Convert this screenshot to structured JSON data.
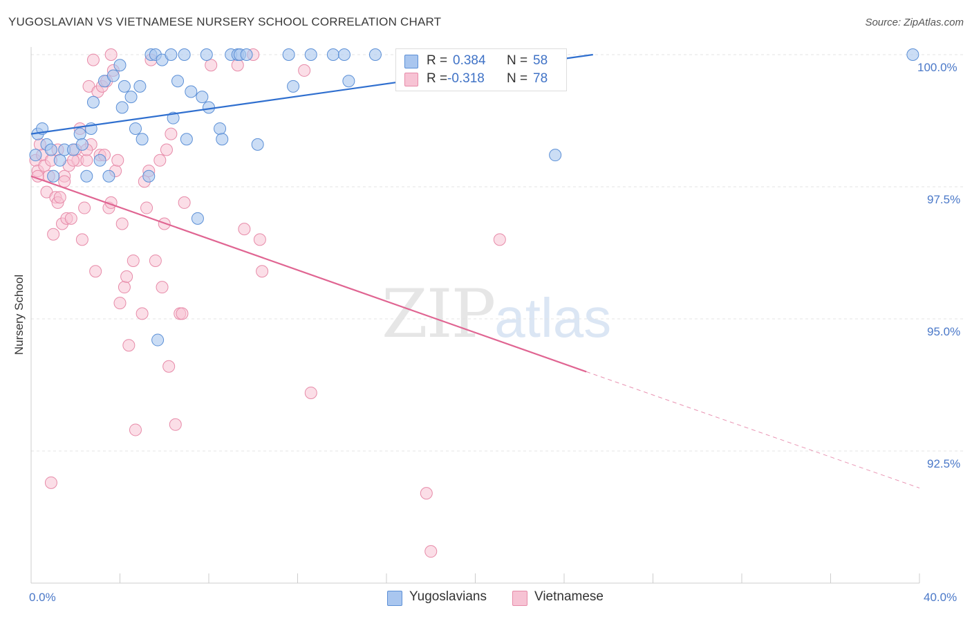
{
  "header": {
    "title": "YUGOSLAVIAN VS VIETNAMESE NURSERY SCHOOL CORRELATION CHART",
    "source": "Source: ZipAtlas.com"
  },
  "watermark": {
    "zip": "ZIP",
    "atlas": "atlas"
  },
  "legend": {
    "r_label": "R =",
    "n_label": "N =",
    "rows": [
      {
        "name": "Yugoslavians",
        "r": "0.384",
        "n": "58"
      },
      {
        "name": "Vietnamese",
        "r": "-0.318",
        "n": "78"
      }
    ]
  },
  "chart_data": {
    "type": "scatter",
    "title": "YUGOSLAVIAN VS VIETNAMESE NURSERY SCHOOL CORRELATION CHART",
    "xlabel": "",
    "ylabel": "Nursery School",
    "xlim": [
      0,
      40
    ],
    "ylim": [
      90.2,
      100.4
    ],
    "x_tick_labels": [
      "0.0%",
      "40.0%"
    ],
    "y_ticks": [
      100.0,
      97.5,
      95.0,
      92.5
    ],
    "y_tick_labels": [
      "100.0%",
      "97.5%",
      "95.0%",
      "92.5%"
    ],
    "grid": true,
    "colors": {
      "yugoslavians_fill": "#a9c6ef",
      "yugoslavians_stroke": "#5b8fd6",
      "yugoslavians_line": "#2f6fcf",
      "vietnamese_fill": "#f7c3d4",
      "vietnamese_stroke": "#e78aa8",
      "vietnamese_line": "#e06592"
    },
    "series": [
      {
        "name": "Yugoslavians",
        "trend": {
          "x": [
            0.0,
            25.3
          ],
          "y": [
            98.5,
            100.0
          ],
          "extend_to": 40.0
        },
        "points": [
          [
            0.3,
            98.5
          ],
          [
            0.5,
            98.6
          ],
          [
            0.7,
            98.3
          ],
          [
            0.9,
            98.2
          ],
          [
            1.3,
            98.0
          ],
          [
            1.5,
            98.2
          ],
          [
            1.9,
            98.2
          ],
          [
            2.2,
            98.5
          ],
          [
            2.3,
            98.3
          ],
          [
            2.5,
            97.7
          ],
          [
            2.7,
            98.6
          ],
          [
            2.8,
            99.1
          ],
          [
            3.1,
            98.0
          ],
          [
            3.3,
            99.5
          ],
          [
            3.5,
            97.7
          ],
          [
            3.7,
            99.6
          ],
          [
            4.0,
            99.8
          ],
          [
            4.1,
            99.0
          ],
          [
            4.2,
            99.4
          ],
          [
            4.5,
            99.2
          ],
          [
            4.7,
            98.6
          ],
          [
            4.9,
            99.4
          ],
          [
            5.0,
            98.4
          ],
          [
            5.3,
            97.7
          ],
          [
            5.4,
            100.0
          ],
          [
            5.6,
            100.0
          ],
          [
            5.9,
            99.9
          ],
          [
            6.3,
            100.0
          ],
          [
            6.4,
            98.8
          ],
          [
            6.6,
            99.5
          ],
          [
            6.9,
            100.0
          ],
          [
            7.0,
            98.4
          ],
          [
            7.2,
            99.3
          ],
          [
            7.5,
            96.9
          ],
          [
            7.7,
            99.2
          ],
          [
            8.0,
            99.0
          ],
          [
            8.5,
            98.6
          ],
          [
            8.6,
            98.4
          ],
          [
            9.0,
            100.0
          ],
          [
            9.3,
            100.0
          ],
          [
            9.4,
            100.0
          ],
          [
            9.7,
            100.0
          ],
          [
            10.2,
            98.3
          ],
          [
            11.6,
            100.0
          ],
          [
            11.8,
            99.4
          ],
          [
            12.6,
            100.0
          ],
          [
            13.6,
            100.0
          ],
          [
            14.1,
            100.0
          ],
          [
            14.3,
            99.5
          ],
          [
            15.5,
            100.0
          ],
          [
            18.4,
            100.0
          ],
          [
            19.3,
            100.0
          ],
          [
            23.6,
            98.1
          ],
          [
            39.7,
            100.0
          ],
          [
            0.2,
            98.1
          ],
          [
            5.7,
            94.6
          ],
          [
            1.0,
            97.7
          ],
          [
            7.9,
            100.0
          ]
        ]
      },
      {
        "name": "Vietnamese",
        "trend": {
          "x": [
            0.0,
            25.0
          ],
          "y": [
            97.7,
            94.0
          ],
          "dash_to": [
            40.0,
            91.8
          ]
        },
        "points": [
          [
            0.2,
            98.0
          ],
          [
            0.3,
            97.8
          ],
          [
            0.4,
            98.3
          ],
          [
            0.5,
            98.1
          ],
          [
            0.6,
            97.9
          ],
          [
            0.7,
            97.4
          ],
          [
            0.8,
            97.7
          ],
          [
            0.9,
            98.0
          ],
          [
            1.0,
            96.6
          ],
          [
            1.1,
            97.3
          ],
          [
            1.2,
            97.2
          ],
          [
            1.3,
            97.3
          ],
          [
            1.4,
            96.8
          ],
          [
            1.5,
            97.7
          ],
          [
            1.6,
            96.9
          ],
          [
            1.7,
            97.9
          ],
          [
            1.8,
            96.9
          ],
          [
            2.0,
            98.2
          ],
          [
            2.1,
            98.0
          ],
          [
            2.2,
            98.6
          ],
          [
            2.3,
            96.5
          ],
          [
            2.4,
            97.1
          ],
          [
            2.5,
            98.0
          ],
          [
            2.6,
            99.4
          ],
          [
            2.7,
            98.3
          ],
          [
            2.8,
            99.9
          ],
          [
            2.9,
            95.9
          ],
          [
            3.0,
            99.3
          ],
          [
            3.1,
            98.1
          ],
          [
            3.2,
            99.4
          ],
          [
            3.4,
            99.5
          ],
          [
            3.5,
            97.1
          ],
          [
            3.6,
            100.0
          ],
          [
            3.7,
            99.7
          ],
          [
            3.8,
            97.8
          ],
          [
            3.9,
            98.0
          ],
          [
            4.0,
            95.3
          ],
          [
            4.1,
            96.8
          ],
          [
            4.2,
            95.6
          ],
          [
            4.3,
            95.8
          ],
          [
            4.4,
            94.5
          ],
          [
            4.6,
            96.1
          ],
          [
            4.7,
            92.9
          ],
          [
            5.0,
            95.1
          ],
          [
            5.1,
            97.6
          ],
          [
            5.2,
            97.1
          ],
          [
            5.3,
            97.8
          ],
          [
            5.4,
            99.9
          ],
          [
            5.6,
            96.1
          ],
          [
            5.8,
            98.0
          ],
          [
            5.9,
            95.6
          ],
          [
            6.0,
            96.8
          ],
          [
            6.1,
            98.2
          ],
          [
            6.2,
            94.1
          ],
          [
            6.3,
            98.5
          ],
          [
            6.5,
            93.0
          ],
          [
            6.7,
            95.1
          ],
          [
            6.8,
            95.1
          ],
          [
            6.9,
            97.2
          ],
          [
            8.1,
            99.8
          ],
          [
            9.3,
            99.8
          ],
          [
            9.6,
            96.7
          ],
          [
            10.0,
            100.0
          ],
          [
            10.3,
            96.5
          ],
          [
            10.4,
            95.9
          ],
          [
            12.3,
            99.7
          ],
          [
            12.6,
            93.6
          ],
          [
            0.3,
            97.7
          ],
          [
            1.5,
            97.6
          ],
          [
            2.5,
            98.2
          ],
          [
            3.6,
            97.2
          ],
          [
            17.8,
            91.7
          ],
          [
            18.0,
            90.6
          ],
          [
            21.1,
            96.5
          ],
          [
            3.3,
            98.1
          ],
          [
            1.2,
            98.2
          ],
          [
            0.9,
            91.9
          ],
          [
            1.9,
            98.0
          ]
        ]
      }
    ]
  }
}
